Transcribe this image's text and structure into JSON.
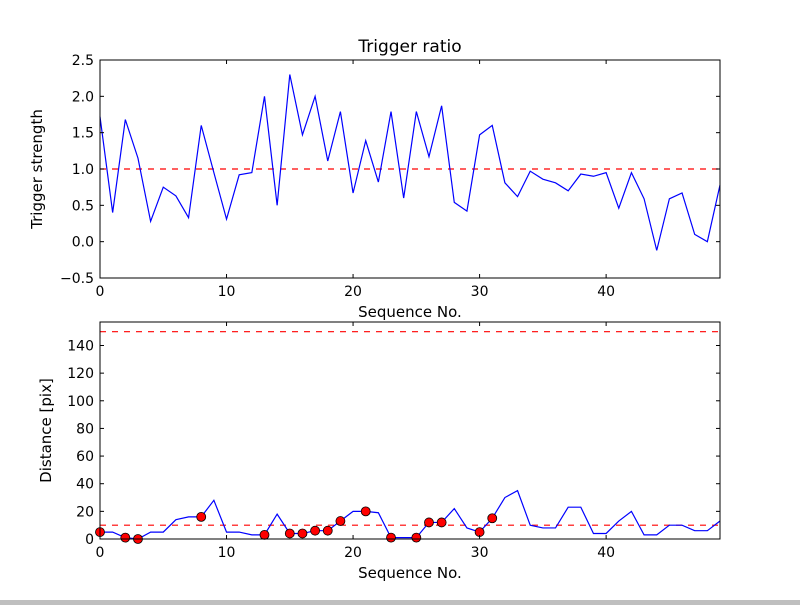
{
  "chart_data": [
    {
      "type": "line",
      "title": "Trigger ratio",
      "xlabel": "Sequence No.",
      "ylabel": "Trigger strength",
      "xlim": [
        0,
        49
      ],
      "ylim": [
        -0.5,
        2.5
      ],
      "xticks": [
        0,
        10,
        20,
        30,
        40
      ],
      "yticks": [
        -0.5,
        0.0,
        0.5,
        1.0,
        1.5,
        2.0,
        2.5
      ],
      "ytick_labels": [
        "−0.5",
        "0.0",
        "0.5",
        "1.0",
        "1.5",
        "2.0",
        "2.5"
      ],
      "threshold_lines": [
        1.0
      ],
      "series": [
        {
          "name": "trigger strength",
          "color": "#0000ff",
          "values": [
            1.72,
            0.4,
            1.68,
            1.15,
            0.28,
            0.75,
            0.63,
            0.33,
            1.6,
            0.95,
            0.31,
            0.92,
            0.95,
            2.0,
            0.5,
            2.3,
            1.47,
            2.0,
            1.11,
            1.79,
            0.67,
            1.39,
            0.82,
            1.79,
            0.6,
            1.79,
            1.17,
            1.87,
            0.54,
            0.42,
            1.47,
            1.6,
            0.81,
            0.62,
            0.97,
            0.86,
            0.81,
            0.7,
            0.93,
            0.9,
            0.95,
            0.46,
            0.95,
            0.59,
            -0.12,
            0.59,
            0.67,
            0.1,
            0.0,
            0.78
          ]
        }
      ]
    },
    {
      "type": "line",
      "title": "",
      "xlabel": "Sequence No.",
      "ylabel": "Distance [pix]",
      "xlim": [
        0,
        49
      ],
      "ylim": [
        0,
        157
      ],
      "xticks": [
        0,
        10,
        20,
        30,
        40
      ],
      "yticks": [
        0,
        20,
        40,
        60,
        80,
        100,
        120,
        140
      ],
      "ytick_labels": [
        "0",
        "20",
        "40",
        "60",
        "80",
        "100",
        "120",
        "140"
      ],
      "threshold_lines": [
        150,
        10
      ],
      "series": [
        {
          "name": "distance",
          "color": "#0000ff",
          "values": [
            5,
            5,
            1,
            0,
            5,
            5,
            14,
            16,
            16,
            28,
            5,
            5,
            3,
            3,
            18,
            4,
            4,
            6,
            6,
            13,
            20,
            20,
            19,
            1,
            1,
            1,
            12,
            12,
            22,
            8,
            5,
            15,
            30,
            35,
            10,
            8,
            8,
            23,
            23,
            4,
            4,
            13,
            20,
            3,
            3,
            10,
            10,
            6,
            6,
            13
          ]
        },
        {
          "name": "triggered",
          "color": "#ff0000",
          "marker": "circle",
          "x": [
            0,
            2,
            3,
            8,
            13,
            15,
            16,
            17,
            18,
            19,
            21,
            23,
            25,
            26,
            27,
            30,
            31
          ],
          "values": [
            5,
            1,
            0,
            16,
            3,
            4,
            4,
            6,
            6,
            13,
            20,
            1,
            1,
            12,
            12,
            5,
            15
          ]
        }
      ]
    }
  ]
}
